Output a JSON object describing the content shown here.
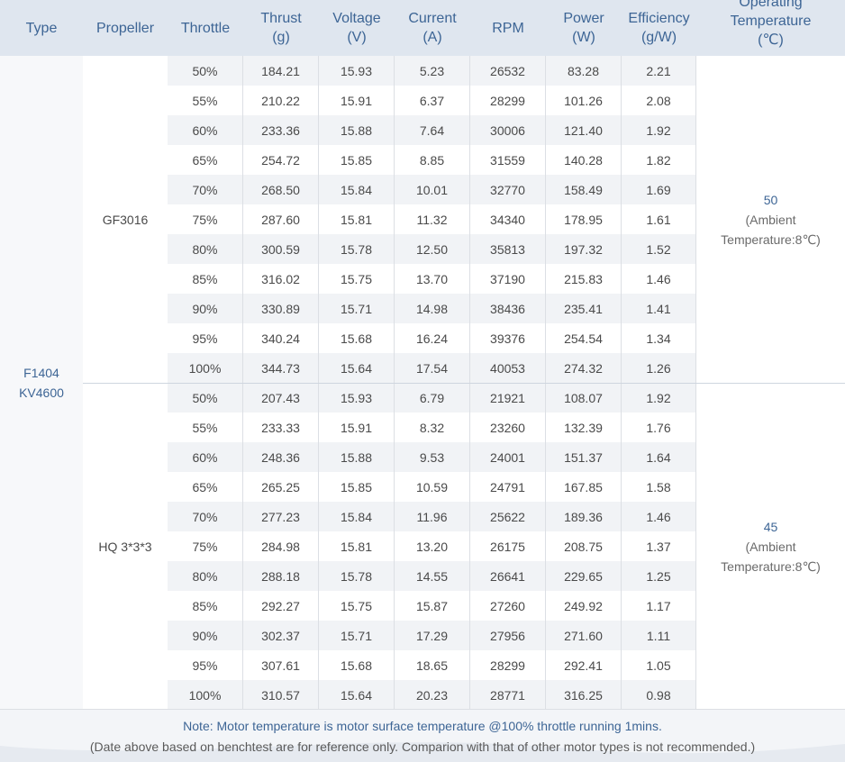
{
  "headers": {
    "type": "Type",
    "propeller": "Propeller",
    "throttle": "Throttle",
    "thrust": "Thrust\n(g)",
    "voltage": "Voltage\n(V)",
    "current": "Current\n(A)",
    "rpm": "RPM",
    "power": "Power\n(W)",
    "efficiency": "Efficiency\n(g/W)",
    "temperature": "Operating\nTemperature\n(℃)"
  },
  "motor_type": "F1404\nKV4600",
  "groups": [
    {
      "propeller": "GF3016",
      "temperature_value": "50",
      "temperature_note_1": "(Ambient",
      "temperature_note_2": "Temperature:8℃)",
      "rows": [
        [
          "50%",
          "184.21",
          "15.93",
          "5.23",
          "26532",
          "83.28",
          "2.21"
        ],
        [
          "55%",
          "210.22",
          "15.91",
          "6.37",
          "28299",
          "101.26",
          "2.08"
        ],
        [
          "60%",
          "233.36",
          "15.88",
          "7.64",
          "30006",
          "121.40",
          "1.92"
        ],
        [
          "65%",
          "254.72",
          "15.85",
          "8.85",
          "31559",
          "140.28",
          "1.82"
        ],
        [
          "70%",
          "268.50",
          "15.84",
          "10.01",
          "32770",
          "158.49",
          "1.69"
        ],
        [
          "75%",
          "287.60",
          "15.81",
          "11.32",
          "34340",
          "178.95",
          "1.61"
        ],
        [
          "80%",
          "300.59",
          "15.78",
          "12.50",
          "35813",
          "197.32",
          "1.52"
        ],
        [
          "85%",
          "316.02",
          "15.75",
          "13.70",
          "37190",
          "215.83",
          "1.46"
        ],
        [
          "90%",
          "330.89",
          "15.71",
          "14.98",
          "38436",
          "235.41",
          "1.41"
        ],
        [
          "95%",
          "340.24",
          "15.68",
          "16.24",
          "39376",
          "254.54",
          "1.34"
        ],
        [
          "100%",
          "344.73",
          "15.64",
          "17.54",
          "40053",
          "274.32",
          "1.26"
        ]
      ]
    },
    {
      "propeller": "HQ 3*3*3",
      "temperature_value": "45",
      "temperature_note_1": "(Ambient",
      "temperature_note_2": "Temperature:8℃)",
      "rows": [
        [
          "50%",
          "207.43",
          "15.93",
          "6.79",
          "21921",
          "108.07",
          "1.92"
        ],
        [
          "55%",
          "233.33",
          "15.91",
          "8.32",
          "23260",
          "132.39",
          "1.76"
        ],
        [
          "60%",
          "248.36",
          "15.88",
          "9.53",
          "24001",
          "151.37",
          "1.64"
        ],
        [
          "65%",
          "265.25",
          "15.85",
          "10.59",
          "24791",
          "167.85",
          "1.58"
        ],
        [
          "70%",
          "277.23",
          "15.84",
          "11.96",
          "25622",
          "189.36",
          "1.46"
        ],
        [
          "75%",
          "284.98",
          "15.81",
          "13.20",
          "26175",
          "208.75",
          "1.37"
        ],
        [
          "80%",
          "288.18",
          "15.78",
          "14.55",
          "26641",
          "229.65",
          "1.25"
        ],
        [
          "85%",
          "292.27",
          "15.75",
          "15.87",
          "27260",
          "249.92",
          "1.17"
        ],
        [
          "90%",
          "302.37",
          "15.71",
          "17.29",
          "27956",
          "271.60",
          "1.11"
        ],
        [
          "95%",
          "307.61",
          "15.68",
          "18.65",
          "28299",
          "292.41",
          "1.05"
        ],
        [
          "100%",
          "310.57",
          "15.64",
          "20.23",
          "28771",
          "316.25",
          "0.98"
        ]
      ]
    }
  ],
  "footer": {
    "note": "Note: Motor temperature is motor surface temperature @100% throttle running 1mins.",
    "disclaimer": "(Date above based on benchtest are for reference only. Comparion with that of other motor types is not recommended.)"
  },
  "colors": {
    "header_bg": "#dfe6ef",
    "header_text": "#3d6595",
    "row_alt_bg": "#f1f3f6",
    "body_text": "#4a4a4a"
  }
}
